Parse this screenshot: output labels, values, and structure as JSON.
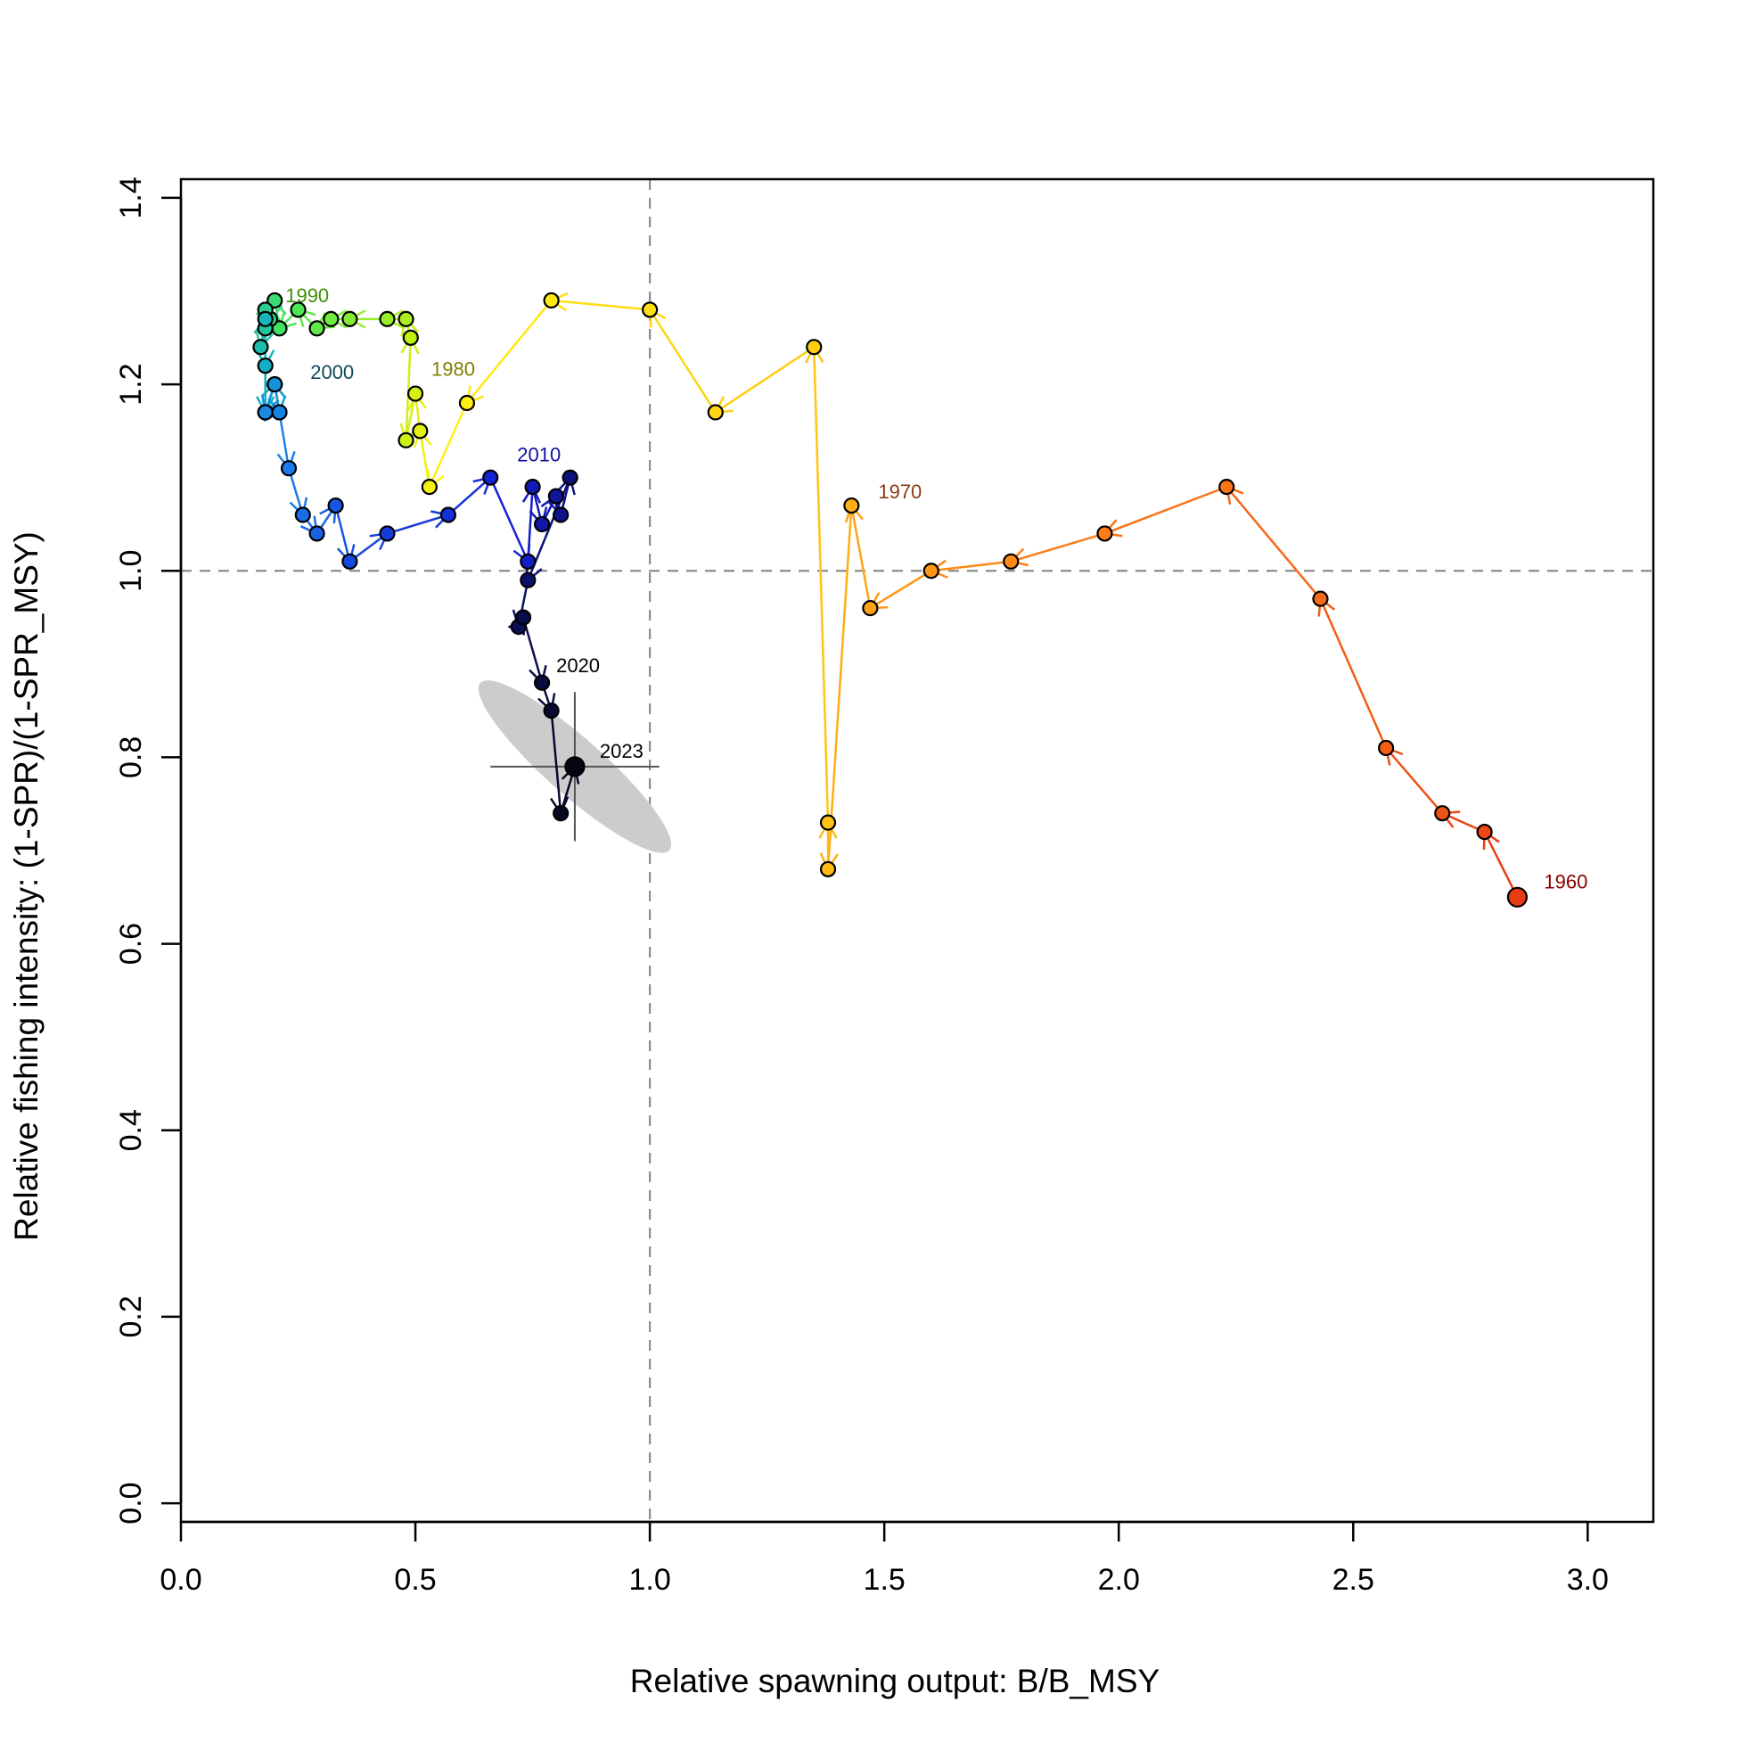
{
  "chart_data": {
    "type": "scatter",
    "title": "",
    "xlabel": "Relative spawning output: B/B_MSY",
    "ylabel": "Relative fishing intensity: (1-SPR)/(1-SPR_MSY)",
    "xlim": [
      0,
      3.14
    ],
    "ylim": [
      -0.02,
      1.42
    ],
    "x_ticks": [
      "0.0",
      "0.5",
      "1.0",
      "1.5",
      "2.0",
      "2.5",
      "3.0"
    ],
    "y_ticks": [
      "0.0",
      "0.2",
      "0.4",
      "0.6",
      "0.8",
      "1.0",
      "1.2",
      "1.4"
    ],
    "grid": false,
    "legend": "none",
    "reference_lines": {
      "x": 1.0,
      "y": 1.0,
      "style": "dashed",
      "color": "#8c8c8c"
    },
    "series": [
      {
        "years": [
          1960,
          1961,
          1962,
          1963,
          1964,
          1965,
          1966,
          1967,
          1968,
          1969,
          1970,
          1971,
          1972,
          1973,
          1974,
          1975,
          1976,
          1977,
          1978,
          1979,
          1980,
          1981,
          1982,
          1983,
          1984,
          1985,
          1986,
          1987,
          1988,
          1989,
          1990,
          1991,
          1992,
          1993,
          1994,
          1995,
          1996,
          1997,
          1998,
          1999,
          2000,
          2001,
          2002,
          2003,
          2004,
          2005,
          2006,
          2007,
          2008,
          2009,
          2010,
          2011,
          2012,
          2013,
          2014,
          2015,
          2016,
          2017,
          2018,
          2019,
          2020,
          2021,
          2022,
          2023
        ],
        "x": [
          2.85,
          2.78,
          2.69,
          2.57,
          2.43,
          2.23,
          1.97,
          1.77,
          1.6,
          1.47,
          1.43,
          1.38,
          1.38,
          1.35,
          1.14,
          1.0,
          0.79,
          0.61,
          0.53,
          0.51,
          0.5,
          0.48,
          0.49,
          0.48,
          0.44,
          0.36,
          0.32,
          0.29,
          0.25,
          0.21,
          0.2,
          0.19,
          0.18,
          0.18,
          0.17,
          0.18,
          0.18,
          0.18,
          0.2,
          0.21,
          0.2,
          0.18,
          0.21,
          0.23,
          0.26,
          0.29,
          0.33,
          0.36,
          0.44,
          0.57,
          0.66,
          0.74,
          0.75,
          0.77,
          0.8,
          0.81,
          0.83,
          0.74,
          0.72,
          0.73,
          0.77,
          0.79,
          0.81,
          0.84
        ],
        "y": [
          0.65,
          0.72,
          0.74,
          0.81,
          0.97,
          1.09,
          1.04,
          1.01,
          1.0,
          0.96,
          1.07,
          0.68,
          0.73,
          1.24,
          1.17,
          1.28,
          1.29,
          1.18,
          1.09,
          1.15,
          1.19,
          1.14,
          1.25,
          1.27,
          1.27,
          1.27,
          1.27,
          1.26,
          1.28,
          1.26,
          1.29,
          1.27,
          1.28,
          1.26,
          1.24,
          1.27,
          1.22,
          1.17,
          1.2,
          1.17,
          1.2,
          1.17,
          1.17,
          1.11,
          1.06,
          1.04,
          1.07,
          1.01,
          1.04,
          1.06,
          1.1,
          1.01,
          1.09,
          1.05,
          1.08,
          1.06,
          1.1,
          0.99,
          0.94,
          0.95,
          0.88,
          0.85,
          0.74,
          0.79
        ]
      }
    ],
    "year_labels": [
      {
        "year": 1960,
        "text": "1960",
        "color": "#8b0000"
      },
      {
        "year": 1970,
        "text": "1970",
        "color": "#8b3a0f"
      },
      {
        "year": 1980,
        "text": "1980",
        "color": "#808000"
      },
      {
        "year": 1990,
        "text": "1990",
        "color": "#3b8f00"
      },
      {
        "year": 2000,
        "text": "2000",
        "color": "#0f4a55"
      },
      {
        "year": 2010,
        "text": "2010",
        "color": "#1010a0"
      },
      {
        "year": 2020,
        "text": "2020",
        "color": "#000000"
      },
      {
        "year": 2023,
        "text": "2023",
        "color": "#000000"
      }
    ],
    "uncertainty": {
      "center": [
        0.84,
        0.79
      ],
      "x_interval": [
        0.66,
        1.02
      ],
      "y_interval": [
        0.71,
        0.87
      ],
      "ellipse_color": "#cccccc",
      "interval_color": "#555555"
    }
  }
}
